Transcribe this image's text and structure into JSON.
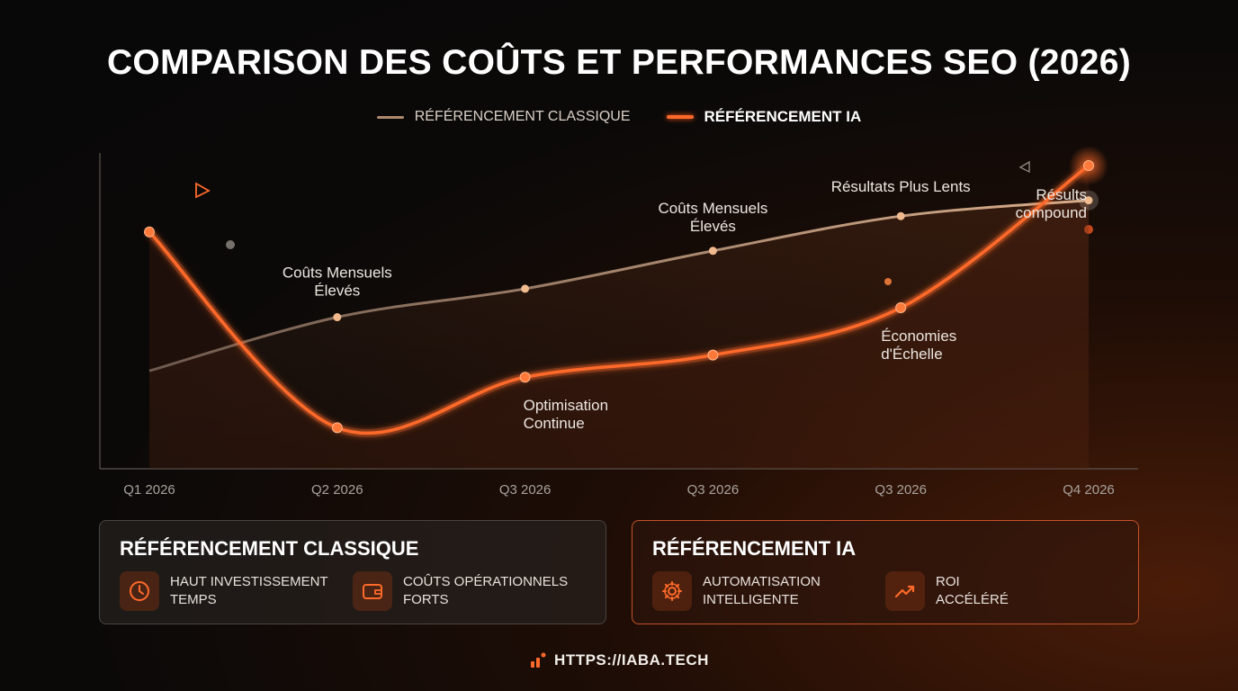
{
  "colors": {
    "classic": "#b08a6e",
    "ia": "#ff6a2a",
    "accent": "#ff6a2a"
  },
  "chart_data": {
    "type": "line",
    "title": "COMPARISON DES COÛTS ET PERFORMANCES SEO (2026)",
    "categories": [
      "Q1 2026",
      "Q2 2026",
      "Q3 2026",
      "Q3 2026",
      "Q3 2026",
      "Q4 2026"
    ],
    "legend_placement": "top-center",
    "grid": false,
    "ylim": [
      0,
      100
    ],
    "series": [
      {
        "name": "RÉFÉRENCEMENT CLASSIQUE",
        "color": "#b08a6e",
        "values": [
          31,
          48,
          57,
          69,
          80,
          85
        ]
      },
      {
        "name": "RÉFÉRENCEMENT IA",
        "color": "#ff6a2a",
        "values": [
          75,
          13,
          29,
          36,
          51,
          96
        ]
      }
    ],
    "annotations": [
      {
        "text": "Coûts Mensuels\nÉlevés",
        "series": 0,
        "index": 1
      },
      {
        "text": "Coûts Mensuels\nÉlevés",
        "series": 0,
        "index": 3
      },
      {
        "text": "Résultats Plus Lents",
        "series": 0,
        "index": 4
      },
      {
        "text": "Optimisation\nContinue",
        "series": 1,
        "index": 2
      },
      {
        "text": "Économies\nd'Échelle",
        "series": 1,
        "index": 4
      },
      {
        "text": "Résults\ncompound",
        "series": 1,
        "index": 5
      }
    ]
  },
  "legend": {
    "classic_label": "RÉFÉRENCEMENT CLASSIQUE",
    "ia_label": "RÉFÉRENCEMENT IA"
  },
  "panels": {
    "classic": {
      "title": "RÉFÉRENCEMENT CLASSIQUE",
      "items": [
        {
          "icon": "clock-icon",
          "label": "HAUT INVESTISSEMENT\nTEMPS"
        },
        {
          "icon": "wallet-icon",
          "label": "COÛTS OPÉRATIONNELS\nFORTS"
        }
      ]
    },
    "ia": {
      "title": "RÉFÉRENCEMENT IA",
      "items": [
        {
          "icon": "gear-icon",
          "label": "AUTOMATISATION\nINTELLIGENTE"
        },
        {
          "icon": "trending-up-icon",
          "label": "ROI\nACCÉLÉRÉ"
        }
      ]
    }
  },
  "footer": {
    "url": "HTTPS://IABA.TECH",
    "icon": "logo-bars-icon"
  }
}
